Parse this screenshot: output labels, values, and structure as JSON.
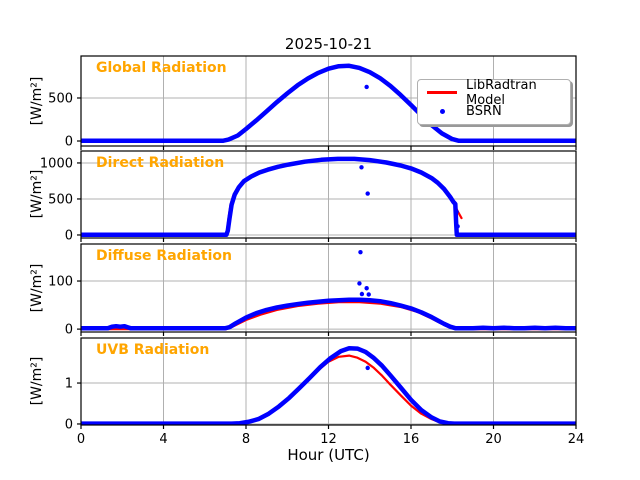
{
  "figure": {
    "title": "2025-10-21",
    "background": "#ffffff"
  },
  "colors": {
    "model": "#ff0000",
    "bsrn": "#0000ff",
    "panel_label": "#ffa500",
    "grid": "#b0b0b0",
    "spine": "#000000"
  },
  "legend": {
    "position": "upper-right-of-first-panel",
    "items": [
      {
        "label": "LibRadtran Model",
        "color": "#ff0000",
        "marker": "line"
      },
      {
        "label": "BSRN",
        "color": "#0000ff",
        "marker": "dot"
      }
    ]
  },
  "chart_data": {
    "type": "line",
    "title": "2025-10-21",
    "grid": true,
    "x_axis": {
      "label": "Hour (UTC)",
      "ticks": [
        0,
        4,
        8,
        12,
        16,
        20,
        24
      ],
      "lim": [
        0,
        24
      ]
    },
    "panels": [
      {
        "label": "Global Radiation",
        "ylabel": "[W/m²]",
        "yticks": [
          0,
          500
        ],
        "ylim": [
          -58,
          988
        ],
        "series": [
          {
            "name": "LibRadtran Model",
            "color": "#ff0000",
            "lw": 2.2,
            "x": [
              0,
              6.9,
              7.2,
              7.6,
              8,
              8.5,
              9,
              9.5,
              10,
              10.5,
              11,
              11.5,
              12,
              12.5,
              13,
              13.5,
              14,
              14.5,
              15,
              15.5,
              16,
              16.5,
              17,
              17.5,
              18,
              18.35,
              18.6,
              24
            ],
            "y": [
              2,
              2,
              14,
              60,
              135,
              235,
              340,
              447,
              548,
              642,
              722,
              787,
              835,
              866,
              870,
              846,
              796,
              726,
              636,
              530,
              415,
              296,
              181,
              84,
              18,
              2,
              2,
              2
            ]
          },
          {
            "name": "BSRN",
            "color": "#0000ff",
            "lw": 4.5,
            "x": [
              0,
              6.9,
              7.15,
              7.6,
              8,
              8.5,
              9,
              9.5,
              10,
              10.5,
              11,
              11.5,
              12,
              12.5,
              13,
              13.5,
              14,
              14.5,
              15,
              15.5,
              16,
              16.5,
              17,
              17.5,
              18,
              18.3,
              18.5,
              24
            ],
            "y": [
              4,
              4,
              16,
              64,
              140,
              240,
              345,
              452,
              553,
              647,
              727,
              792,
              840,
              870,
              874,
              850,
              800,
              730,
              640,
              534,
              419,
              300,
              185,
              88,
              22,
              4,
              4,
              4
            ]
          }
        ],
        "outliers": [
          [
            13.85,
            628
          ]
        ]
      },
      {
        "label": "Direct Radiation",
        "ylabel": "[W/m²]",
        "yticks": [
          0,
          500,
          1000
        ],
        "ylim": [
          -42,
          1166
        ],
        "series": [
          {
            "name": "LibRadtran Model",
            "color": "#ff0000",
            "lw": 2.2,
            "x": [
              0,
              7.0,
              7.08,
              7.15,
              7.25,
              7.4,
              7.6,
              7.85,
              8.2,
              8.6,
              9,
              9.5,
              10,
              10.8,
              11.6,
              12.4,
              13.2,
              14,
              14.8,
              15.5,
              16,
              16.5,
              17,
              17.3,
              17.6,
              17.9,
              18.1,
              18.3,
              18.45
            ],
            "y": [
              0,
              0,
              60,
              230,
              420,
              560,
              660,
              745,
              810,
              865,
              905,
              945,
              975,
              1015,
              1042,
              1055,
              1054,
              1038,
              1005,
              962,
              922,
              866,
              788,
              722,
              638,
              525,
              425,
              310,
              235
            ]
          },
          {
            "name": "BSRN",
            "color": "#0000ff",
            "lw": 4.5,
            "x": [
              0,
              7.05,
              7.12,
              7.2,
              7.3,
              7.45,
              7.65,
              7.9,
              8.25,
              8.65,
              9.05,
              9.55,
              10.05,
              10.85,
              11.65,
              12.45,
              13.25,
              14,
              14.8,
              15.5,
              16,
              16.5,
              17,
              17.3,
              17.6,
              17.9,
              18.05,
              18.15,
              18.19,
              18.22,
              24
            ],
            "y": [
              3,
              3,
              60,
              230,
              420,
              560,
              662,
              747,
              812,
              867,
              907,
              947,
              977,
              1017,
              1044,
              1057,
              1056,
              1040,
              1007,
              964,
              924,
              868,
              790,
              724,
              640,
              527,
              460,
              430,
              150,
              3,
              3
            ]
          }
        ],
        "outliers": [
          [
            13.6,
            940
          ],
          [
            13.9,
            575
          ],
          [
            18.21,
            320
          ],
          [
            18.26,
            120
          ]
        ]
      },
      {
        "label": "Diffuse Radiation",
        "ylabel": "[W/m²]",
        "yticks": [
          0,
          100
        ],
        "ylim": [
          -6,
          177
        ],
        "series": [
          {
            "name": "LibRadtran Model",
            "color": "#ff0000",
            "lw": 2.2,
            "x": [
              0,
              7.05,
              7.4,
              8,
              8.7,
              9.5,
              10.5,
              11.5,
              12.5,
              13.5,
              14.5,
              15.5,
              16.3,
              17,
              17.5,
              17.9,
              18.2,
              24
            ],
            "y": [
              0,
              0,
              6,
              19,
              30,
              40,
              48,
              53,
              56,
              56,
              53,
              46,
              36,
              22,
              11,
              3,
              0,
              0
            ]
          },
          {
            "name": "BSRN",
            "color": "#0000ff",
            "lw": 4.5,
            "x": [
              0,
              1.3,
              1.5,
              1.7,
              1.9,
              2.1,
              2.4,
              7.0,
              7.2,
              7.5,
              8,
              8.5,
              9,
              9.5,
              10,
              10.5,
              11,
              11.5,
              12,
              12.5,
              13,
              13.5,
              14,
              14.5,
              15,
              15.5,
              16,
              16.5,
              17,
              17.3,
              17.6,
              17.9,
              18.15,
              18.5,
              19,
              19.5,
              20,
              20.5,
              21,
              21.5,
              22,
              22.5,
              23,
              23.5,
              24
            ],
            "y": [
              2,
              2,
              5,
              6,
              5,
              6,
              2,
              2,
              4,
              12,
              24,
              33,
              40,
              45,
              49,
              52,
              55,
              57,
              59,
              60,
              61,
              61,
              60,
              58,
              54,
              49,
              43,
              35,
              25,
              18,
              11,
              5,
              2,
              2,
              2,
              3,
              2,
              3,
              2,
              2,
              3,
              2,
              3,
              2,
              2
            ]
          }
        ],
        "outliers": [
          [
            13.5,
            95
          ],
          [
            13.55,
            160
          ],
          [
            13.62,
            73
          ],
          [
            13.85,
            85
          ],
          [
            13.95,
            72
          ]
        ]
      },
      {
        "label": "UVB Radiation",
        "ylabel": "[W/m²]",
        "yticks": [
          0,
          1
        ],
        "ylim": [
          -0.025,
          2.1
        ],
        "series": [
          {
            "name": "LibRadtran Model",
            "color": "#ff0000",
            "lw": 2.2,
            "x": [
              0,
              7.2,
              7.6,
              8,
              8.5,
              9,
              9.5,
              10,
              10.5,
              11,
              11.5,
              12,
              12.5,
              13,
              13.4,
              13.8,
              14.2,
              14.6,
              15,
              15.5,
              16,
              16.5,
              17,
              17.4,
              17.8,
              24
            ],
            "y": [
              0.01,
              0.01,
              0.02,
              0.05,
              0.11,
              0.23,
              0.4,
              0.6,
              0.83,
              1.07,
              1.31,
              1.52,
              1.64,
              1.67,
              1.62,
              1.52,
              1.37,
              1.18,
              0.96,
              0.7,
              0.45,
              0.25,
              0.12,
              0.04,
              0.01,
              0.01
            ]
          },
          {
            "name": "BSRN",
            "color": "#0000ff",
            "lw": 4.5,
            "x": [
              0,
              7.3,
              7.7,
              8.1,
              8.6,
              9.1,
              9.6,
              10.1,
              10.6,
              11.1,
              11.6,
              12.1,
              12.6,
              13,
              13.4,
              13.8,
              14.2,
              14.6,
              15,
              15.5,
              16,
              16.5,
              17,
              17.4,
              17.8,
              18.1,
              24
            ],
            "y": [
              0.01,
              0.01,
              0.02,
              0.05,
              0.12,
              0.25,
              0.43,
              0.64,
              0.88,
              1.13,
              1.39,
              1.61,
              1.78,
              1.85,
              1.84,
              1.76,
              1.61,
              1.42,
              1.19,
              0.89,
              0.59,
              0.34,
              0.16,
              0.06,
              0.02,
              0.01,
              0.01
            ]
          }
        ],
        "outliers": [
          [
            13.9,
            1.37
          ]
        ]
      }
    ]
  }
}
